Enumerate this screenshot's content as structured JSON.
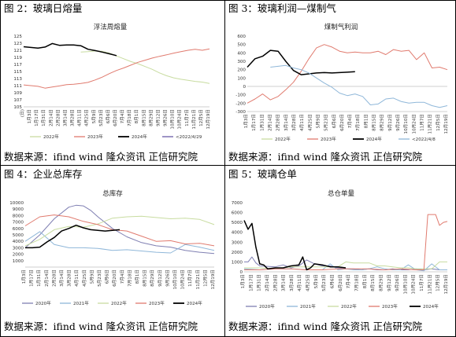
{
  "captions": {
    "fig2": "图 2：玻璃日熔量",
    "fig3": "图 3：玻璃利润—煤制气",
    "fig4": "图 4：企业总库存",
    "fig5": "图 5：玻璃仓单",
    "src_left_top": "数据来源：ifind wind 隆众资讯 正信研究院",
    "src_right_top": "数据来源：ifind wind 隆众资讯 正信研究院",
    "src_left_bottom": "数据来源：ifind wind 隆众资讯 正信研究院",
    "src_right_bottom": "数据来源：ifind wind 隆众资讯 正信研究院"
  },
  "colors": {
    "s2020": "#7f7fb2",
    "s2021": "#8fb7d9",
    "s2022": "#c8dca0",
    "s2023": "#e07a6e",
    "s2024": "#000000",
    "s_2022_4_29": "#6a5aa8",
    "s_2022_4_8": "#8fb7d9",
    "axis": "#bfbfbf"
  },
  "chart_data": [
    {
      "id": "melt",
      "type": "line",
      "title": "浮法周熔量",
      "ylim": [
        105,
        125
      ],
      "yticks": [
        105,
        107,
        109,
        111,
        113,
        115,
        117,
        119,
        121,
        123,
        125
      ],
      "xlim": [
        0,
        52
      ],
      "xtick_labels": [
        "(日)",
        "1月3日",
        "1月17日",
        "1月31日",
        "2月14日",
        "2月28日",
        "3月14日",
        "3月28日",
        "4月11日",
        "4月25日",
        "5月9日",
        "5月23日",
        "6月6日",
        "6月20日",
        "7月4日",
        "7月18日",
        "8月1日",
        "8月15日",
        "8月29日",
        "9月12日",
        "9月26日",
        "10月10日",
        "10月24日",
        "11月7日",
        "11月21日",
        "12月5日",
        "12月19日"
      ],
      "series": [
        {
          "name": "2022年",
          "color_key": "s2022",
          "x": [
            16,
            18,
            20,
            22,
            24,
            26,
            28,
            30,
            32,
            34,
            36,
            38,
            40,
            42,
            44,
            46,
            48,
            50,
            52
          ],
          "y": [
            120.5,
            120.6,
            120.8,
            120.7,
            120.2,
            119.4,
            118.6,
            117.8,
            117.2,
            116.4,
            115.6,
            114.6,
            113.8,
            113.2,
            112.8,
            112.5,
            112.2,
            112.0,
            111.6
          ]
        },
        {
          "name": "2023年",
          "color_key": "s2023",
          "x": [
            0,
            2,
            4,
            6,
            8,
            10,
            12,
            14,
            16,
            18,
            20,
            22,
            24,
            26,
            28,
            30,
            32,
            34,
            36,
            38,
            40,
            42,
            44,
            46,
            48,
            50,
            52
          ],
          "y": [
            111.2,
            111.0,
            110.8,
            110.3,
            110.6,
            110.9,
            111.3,
            111.4,
            111.6,
            111.9,
            112.6,
            113.4,
            114.4,
            115.3,
            116.0,
            116.8,
            117.6,
            118.2,
            118.8,
            119.3,
            119.7,
            120.2,
            120.6,
            121.0,
            121.3,
            121.0,
            121.4
          ]
        },
        {
          "name": "2024年",
          "color_key": "s2024",
          "x": [
            0,
            2,
            4,
            6,
            8,
            10,
            12,
            14,
            16,
            18,
            20,
            22,
            24,
            26
          ],
          "y": [
            122.0,
            121.8,
            121.6,
            121.9,
            122.9,
            122.4,
            122.5,
            122.5,
            122.3,
            121.3,
            120.9,
            120.5,
            120.0,
            119.5
          ]
        },
        {
          "name": "<2022/4/29",
          "color_key": "s_2022_4_29",
          "x": [],
          "y": []
        }
      ]
    },
    {
      "id": "profit",
      "type": "line",
      "title": "煤制气利润",
      "ylim": [
        -300,
        600
      ],
      "yticks": [
        -300,
        -200,
        -100,
        0,
        100,
        200,
        300,
        400,
        500,
        600
      ],
      "xlim": [
        0,
        52
      ],
      "xtick_labels": [
        "1月3日",
        "1月17日",
        "1月31日",
        "2月14日",
        "2月28日",
        "3月14日",
        "3月28日",
        "4月11日",
        "4月25日",
        "5月9日",
        "5月23日",
        "6月6日",
        "6月20日",
        "7月4日",
        "7月18日",
        "8月1日",
        "8月15日",
        "8月29日",
        "9月12日",
        "9月26日",
        "10月10日",
        "10月24日",
        "11月7日",
        "11月21日",
        "12月5日",
        "12月19日"
      ],
      "series": [
        {
          "name": "2022年",
          "color_key": "s2022",
          "x": [],
          "y": []
        },
        {
          "name": "2023年",
          "color_key": "s2023",
          "x": [
            0,
            2,
            4,
            6,
            8,
            10,
            12,
            14,
            16,
            18,
            20,
            22,
            24,
            26,
            28,
            30,
            32,
            34,
            36,
            38,
            40,
            42,
            44,
            46,
            48,
            50,
            52
          ],
          "y": [
            -200,
            -150,
            -90,
            -160,
            -120,
            -40,
            50,
            180,
            330,
            460,
            500,
            470,
            420,
            400,
            410,
            400,
            400,
            420,
            380,
            440,
            420,
            430,
            320,
            400,
            220,
            230,
            200
          ]
        },
        {
          "name": "2024年",
          "color_key": "s2024",
          "x": [
            0,
            2,
            4,
            6,
            8,
            10,
            12,
            14,
            16,
            18,
            20,
            22,
            24,
            26,
            28
          ],
          "y": [
            230,
            330,
            360,
            430,
            420,
            300,
            190,
            140,
            150,
            160,
            165,
            160,
            165,
            170,
            175
          ]
        },
        {
          "name": "<2022/4/8",
          "color_key": "s_2022_4_8",
          "x": [
            6,
            8,
            10,
            12,
            14,
            16,
            18,
            20,
            22,
            24,
            26,
            28,
            30,
            32,
            34,
            36,
            38,
            40,
            42,
            44,
            46,
            48,
            50,
            52
          ],
          "y": [
            230,
            240,
            250,
            220,
            200,
            160,
            100,
            40,
            -10,
            -80,
            -110,
            -90,
            -120,
            -220,
            -210,
            -150,
            -140,
            -180,
            -200,
            -190,
            -190,
            -230,
            -250,
            -230
          ]
        }
      ]
    },
    {
      "id": "inventory",
      "type": "line",
      "title": "总库存",
      "ylim": [
        0,
        10000
      ],
      "yticks": [
        1000,
        2000,
        3000,
        4000,
        5000,
        6000,
        7000,
        8000,
        9000,
        10000
      ],
      "xlim": [
        0,
        52
      ],
      "xtick_labels": [
        "1月3日",
        "1月17日",
        "1月31日",
        "2月14日",
        "2月28日",
        "3月14日",
        "3月28日",
        "4月11日",
        "4月25日",
        "5月9日",
        "5月23日",
        "6月6日",
        "6月20日",
        "7月4日",
        "7月18日",
        "8月1日",
        "8月15日",
        "8月29日",
        "9月12日",
        "9月26日",
        "10月10日",
        "10月24日",
        "11月7日",
        "11月21日",
        "12月5日",
        "12月19日"
      ],
      "series": [
        {
          "name": "2020年",
          "color_key": "s2020",
          "x": [
            0,
            4,
            8,
            12,
            14,
            16,
            18,
            20,
            24,
            28,
            32,
            36,
            40,
            44,
            48,
            52
          ],
          "y": [
            3000,
            5000,
            7500,
            9300,
            9600,
            9500,
            8800,
            7800,
            6000,
            4700,
            3800,
            3300,
            3100,
            2600,
            2300,
            2100
          ]
        },
        {
          "name": "2021年",
          "color_key": "s2021",
          "x": [
            0,
            4,
            8,
            12,
            16,
            20,
            24,
            28,
            32,
            36,
            40,
            44,
            48,
            52
          ],
          "y": [
            4000,
            5500,
            3500,
            3000,
            3000,
            2900,
            2600,
            2700,
            2500,
            2300,
            2200,
            3500,
            3100,
            2600
          ]
        },
        {
          "name": "2022年",
          "color_key": "s2022",
          "x": [
            0,
            4,
            8,
            12,
            16,
            20,
            24,
            28,
            32,
            36,
            40,
            44,
            48,
            52
          ],
          "y": [
            3300,
            4300,
            5800,
            6300,
            6200,
            6700,
            7600,
            7800,
            7900,
            7700,
            7500,
            7600,
            7400,
            6600
          ]
        },
        {
          "name": "2023年",
          "color_key": "s2023",
          "x": [
            0,
            4,
            8,
            12,
            16,
            20,
            24,
            28,
            32,
            36,
            40,
            44,
            48,
            52
          ],
          "y": [
            6400,
            7800,
            8100,
            7800,
            7100,
            6600,
            5800,
            5600,
            4800,
            4000,
            4100,
            3600,
            3700,
            3300
          ]
        },
        {
          "name": "2024年",
          "color_key": "s2024",
          "x": [
            0,
            2,
            4,
            6,
            8,
            10,
            12,
            14,
            16,
            18,
            20,
            22,
            24,
            26
          ],
          "y": [
            3000,
            3000,
            3100,
            3900,
            4600,
            5600,
            6000,
            6500,
            6100,
            5800,
            5700,
            5600,
            5700,
            5800
          ]
        }
      ]
    },
    {
      "id": "warrants",
      "type": "line",
      "title": "总仓单量",
      "ylim": [
        0,
        7000
      ],
      "yticks": [
        0,
        1000,
        2000,
        3000,
        4000,
        5000,
        6000,
        7000
      ],
      "xlim": [
        0,
        52
      ],
      "xtick_labels": [
        "1月3日",
        "1月17日",
        "1月31日",
        "2月14日",
        "2月28日",
        "3月14日",
        "3月28日",
        "4月11日",
        "4月25日",
        "5月9日",
        "5月23日",
        "6月6日",
        "6月20日",
        "7月4日",
        "7月18日",
        "8月1日",
        "8月15日",
        "8月29日",
        "9月12日",
        "9月26日",
        "10月10日",
        "10月24日",
        "11月7日",
        "11月21日",
        "12月5日",
        "12月19日"
      ],
      "series": [
        {
          "name": "2020年",
          "color_key": "s2020",
          "x": [
            0,
            1,
            2,
            3,
            4,
            8,
            10,
            12,
            14,
            16,
            18,
            20,
            22,
            24,
            26,
            28,
            30,
            32,
            34,
            36,
            38,
            40,
            42,
            44,
            46,
            48,
            50,
            52
          ],
          "y": [
            1000,
            1000,
            1500,
            900,
            600,
            500,
            700,
            400,
            600,
            1200,
            800,
            600,
            600,
            400,
            300,
            300,
            200,
            300,
            200,
            200,
            300,
            200,
            200,
            300,
            200,
            300,
            200,
            200
          ]
        },
        {
          "name": "2021年",
          "color_key": "s2021",
          "x": [
            0,
            4,
            8,
            12,
            16,
            20,
            22,
            24,
            26,
            28,
            30,
            32,
            34,
            36,
            38,
            40,
            42,
            44,
            46,
            48,
            50,
            52
          ],
          "y": [
            300,
            200,
            300,
            300,
            200,
            200,
            800,
            200,
            300,
            200,
            200,
            300,
            500,
            300,
            200,
            200,
            700,
            200,
            100,
            800,
            200,
            200
          ]
        },
        {
          "name": "2022年",
          "color_key": "s2022",
          "x": [
            0,
            4,
            8,
            12,
            16,
            20,
            24,
            26,
            28,
            30,
            32,
            34,
            36,
            38,
            40,
            42,
            44,
            46,
            48,
            50,
            52
          ],
          "y": [
            400,
            400,
            300,
            500,
            500,
            500,
            500,
            1000,
            900,
            900,
            900,
            600,
            600,
            500,
            400,
            400,
            300,
            300,
            300,
            1000,
            1000
          ]
        },
        {
          "name": "2023年",
          "color_key": "s2023",
          "x": [
            0,
            4,
            8,
            12,
            16,
            20,
            24,
            28,
            32,
            36,
            40,
            44,
            46,
            47,
            48,
            49,
            50,
            51,
            52
          ],
          "y": [
            200,
            200,
            300,
            300,
            200,
            200,
            300,
            300,
            300,
            200,
            300,
            200,
            200,
            5800,
            5800,
            5800,
            4700,
            5000,
            5100
          ]
        },
        {
          "name": "2024年",
          "color_key": "s2024",
          "x": [
            0,
            1,
            2,
            3,
            4,
            5,
            6,
            8,
            10,
            12,
            14,
            15,
            16,
            17,
            18,
            20,
            22,
            24,
            26
          ],
          "y": [
            5200,
            4300,
            4900,
            2500,
            800,
            700,
            300,
            400,
            400,
            600,
            700,
            1500,
            200,
            400,
            800,
            700,
            500,
            500,
            400
          ]
        }
      ]
    }
  ]
}
